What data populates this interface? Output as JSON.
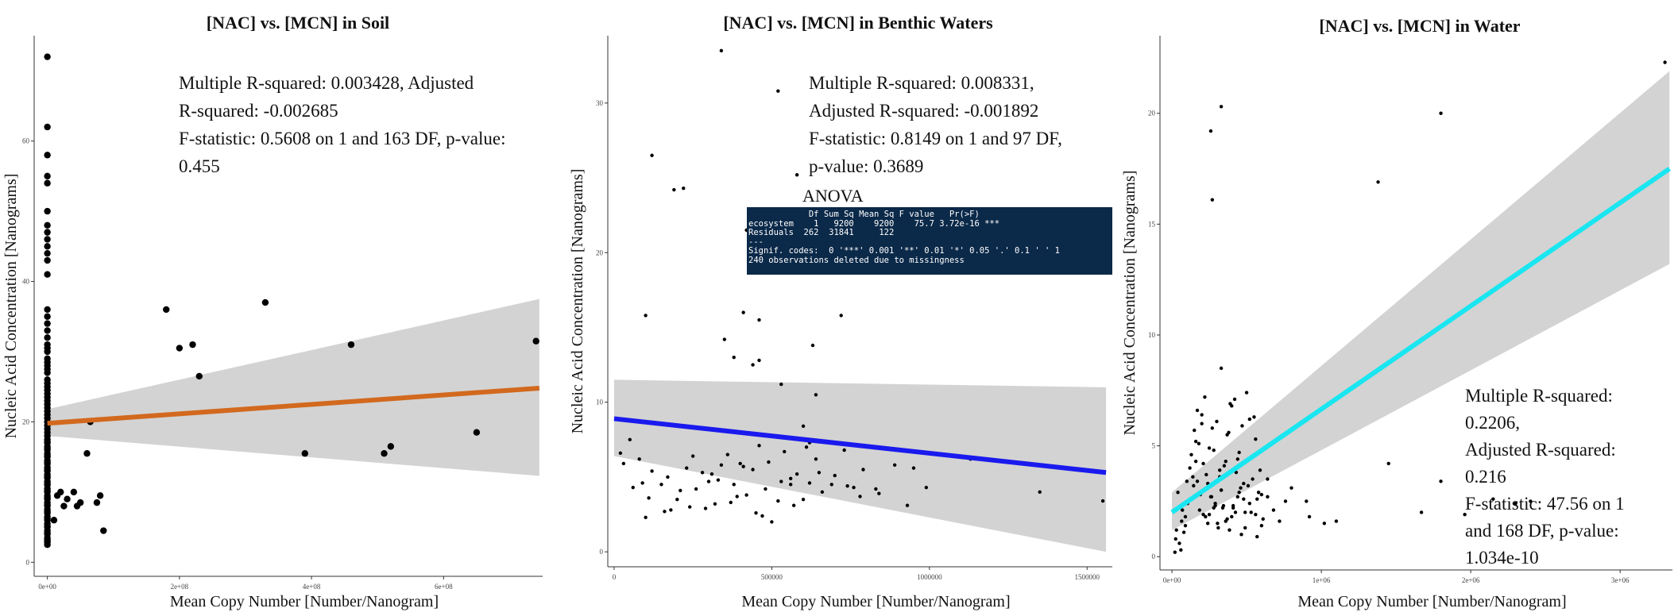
{
  "chart_data": [
    {
      "type": "scatter",
      "title": "[NAC] vs. [MCN] in Soil",
      "xlabel": "Mean Copy Number [Number/Nanogram]",
      "ylabel": "Nucleic Acid Concentration [Nanograms]",
      "xlim": [
        -20000000,
        750000000
      ],
      "ylim": [
        -2,
        75
      ],
      "x_ticks": [
        0,
        200000000,
        400000000,
        600000000
      ],
      "x_tick_labels": [
        "0e+00",
        "2e+08",
        "4e+08",
        "6e+08"
      ],
      "y_ticks": [
        0,
        20,
        40,
        60
      ],
      "y_tick_labels": [
        "0",
        "20",
        "40",
        "60"
      ],
      "regression_line": {
        "color": "#d2691e",
        "x": [
          0,
          745000000
        ],
        "y": [
          19.8,
          24.8
        ]
      },
      "confidence_band": {
        "upper": [
          21.8,
          37.5
        ],
        "lower": [
          18.0,
          12.3
        ]
      },
      "annotation_lines": [
        "Multiple R-squared:  0.003428, Adjusted",
        "R-squared:  -0.002685",
        "F-statistic: 0.5608 on 1 and 163 DF,  p-value:",
        "0.455"
      ],
      "series": [
        {
          "x": [
            0,
            0,
            0,
            0,
            0,
            0,
            0,
            0,
            0,
            0,
            0,
            0,
            0,
            0,
            0,
            0,
            0,
            0,
            0,
            0,
            0,
            0,
            0,
            0,
            0,
            0,
            0,
            0,
            0,
            0,
            0,
            0,
            0,
            0,
            0,
            0,
            0,
            0,
            0,
            0,
            0,
            0,
            0,
            0,
            0,
            0,
            0,
            0,
            0,
            0,
            0,
            0,
            0,
            0,
            0,
            0,
            0,
            0,
            0,
            0,
            0,
            0,
            0,
            0,
            0,
            0,
            0,
            0,
            0,
            0,
            0,
            0,
            0,
            0,
            0,
            0,
            0,
            0,
            0,
            0,
            0,
            0,
            0,
            0,
            0,
            0,
            0,
            0,
            0,
            0,
            10000000,
            15000000,
            20000000,
            25000000,
            30000000,
            40000000,
            45000000,
            50000000,
            60000000,
            65000000,
            75000000,
            80000000,
            85000000,
            180000000,
            200000000,
            220000000,
            230000000,
            330000000,
            390000000,
            460000000,
            510000000,
            520000000,
            650000000,
            740000000
          ],
          "y": [
            72,
            62,
            58,
            55,
            54,
            50,
            48,
            47,
            46,
            45,
            44,
            43,
            41,
            36,
            35,
            34,
            33,
            32,
            31,
            30.5,
            30,
            29,
            28.5,
            28,
            27.5,
            27,
            26,
            25.5,
            25,
            24.5,
            24,
            23.5,
            23,
            22.5,
            22,
            21.5,
            21,
            20.5,
            20,
            19.5,
            19,
            18.5,
            18,
            17.5,
            17,
            16.5,
            16,
            15.5,
            15,
            14.5,
            14,
            13.5,
            13,
            12.5,
            12,
            11.5,
            11,
            10.5,
            10,
            9.5,
            9,
            8.5,
            8,
            7.5,
            7,
            6.5,
            6,
            5.5,
            5,
            4.5,
            4,
            3.5,
            3,
            2.5,
            2.8,
            3.2,
            4.2,
            5.2,
            6.2,
            7.2,
            8.2,
            9.2,
            10.2,
            11.2,
            12.2,
            13.2,
            14.2,
            15.2,
            16.2,
            17.2,
            6,
            9.5,
            10,
            8,
            9,
            10,
            8,
            8.5,
            15.5,
            20,
            8.5,
            9.5,
            4.5,
            36,
            30.5,
            31,
            26.5,
            37,
            15.5,
            31,
            15.5,
            16.5,
            18.5,
            31.5
          ]
        }
      ]
    },
    {
      "type": "scatter",
      "title": "[NAC] vs. [MCN] in Benthic Waters",
      "xlabel": "Mean Copy Number [Number/Nanogram]",
      "ylabel": "Nucleic Acid Concentration [Nanograms]",
      "xlim": [
        -20000,
        1580000
      ],
      "ylim": [
        -1,
        34.5
      ],
      "x_ticks": [
        0,
        500000,
        1000000,
        1500000
      ],
      "x_tick_labels": [
        "0",
        "500000",
        "1000000",
        "1500000"
      ],
      "y_ticks": [
        0,
        10,
        20,
        30
      ],
      "y_tick_labels": [
        "0",
        "10",
        "20",
        "30"
      ],
      "regression_line": {
        "color": "#1a1aee",
        "x": [
          0,
          1560000
        ],
        "y": [
          8.9,
          5.3
        ]
      },
      "confidence_band": {
        "upper": [
          11.5,
          11.0
        ],
        "lower": [
          6.4,
          0.0
        ]
      },
      "annotation_lines": [
        "Multiple R-squared:  0.008331,",
        "Adjusted R-squared:  -0.001892",
        "F-statistic: 0.8149 on 1 and 97 DF,",
        "p-value: 0.3689"
      ],
      "anova": {
        "title": "ANOVA",
        "lines": [
          "            Df Sum Sq Mean Sq F value   Pr(>F)",
          "ecosystem    1   9200    9200    75.7 3.72e-16 ***",
          "Residuals  262  31841     122",
          "---",
          "Signif. codes:  0 '***' 0.001 '**' 0.01 '*' 0.05 '.' 0.1 ' ' 1",
          "240 observations deleted due to missingness"
        ]
      },
      "series": [
        {
          "x": [
            120000,
            190000,
            220000,
            340000,
            420000,
            460000,
            100000,
            350000,
            380000,
            520000,
            720000,
            580000,
            630000,
            410000,
            440000,
            460000,
            530000,
            640000,
            600000,
            620000,
            20000,
            50000,
            80000,
            100000,
            120000,
            150000,
            180000,
            200000,
            230000,
            260000,
            280000,
            300000,
            320000,
            340000,
            360000,
            380000,
            400000,
            420000,
            440000,
            460000,
            480000,
            500000,
            520000,
            540000,
            560000,
            580000,
            600000,
            620000,
            640000,
            660000,
            700000,
            740000,
            790000,
            840000,
            60000,
            110000,
            170000,
            210000,
            250000,
            290000,
            330000,
            370000,
            410000,
            450000,
            490000,
            530000,
            570000,
            610000,
            650000,
            690000,
            730000,
            780000,
            830000,
            890000,
            950000,
            990000,
            1130000,
            1350000,
            1550000,
            30000,
            90000,
            160000,
            240000,
            310000,
            390000,
            470000,
            560000,
            760000,
            930000
          ],
          "y": [
            26.5,
            24.2,
            24.3,
            33.5,
            21.5,
            15.5,
            15.8,
            14.2,
            13,
            30.8,
            15.8,
            25.2,
            13.8,
            16,
            12.5,
            12.8,
            11.2,
            10.5,
            8.4,
            7.3,
            6.6,
            7.5,
            6.2,
            2.3,
            5.4,
            4.5,
            2.8,
            3.5,
            5.6,
            4.2,
            5.3,
            4.7,
            3.2,
            5.8,
            6.5,
            4.5,
            5.9,
            3.8,
            5.5,
            7.1,
            4.2,
            2.0,
            3.4,
            6.7,
            4.9,
            5.2,
            3.5,
            4.6,
            6.2,
            4.0,
            5.1,
            4.4,
            5.5,
            3.9,
            4.3,
            3.6,
            5.0,
            4.1,
            6.4,
            2.9,
            4.8,
            3.3,
            5.7,
            2.6,
            6.0,
            4.7,
            3.1,
            7.0,
            5.3,
            4.5,
            6.8,
            3.7,
            4.2,
            5.8,
            5.6,
            4.3,
            6.2,
            4.0,
            3.4,
            5.9,
            4.6,
            2.7,
            3.0,
            5.2,
            3.7,
            2.4,
            4.5,
            4.3,
            3.1
          ]
        }
      ]
    },
    {
      "type": "scatter",
      "title": "[NAC] vs. [MCN] in Water",
      "xlabel": "Mean Copy Number [Number/Nanogram]",
      "ylabel": "Nucleic Acid Concentration [Nanograms]",
      "xlim": [
        -80000,
        3350000
      ],
      "ylim": [
        -0.6,
        23.5
      ],
      "x_ticks": [
        0,
        1000000,
        2000000,
        3000000
      ],
      "x_tick_labels": [
        "0e+00",
        "1e+06",
        "2e+06",
        "3e+06"
      ],
      "y_ticks": [
        0,
        5,
        10,
        15,
        20
      ],
      "y_tick_labels": [
        "0",
        "5",
        "10",
        "15",
        "20"
      ],
      "regression_line": {
        "color": "#19e6f0",
        "x": [
          0,
          3330000
        ],
        "y": [
          2.0,
          17.5
        ]
      },
      "confidence_band": {
        "upper": [
          2.9,
          21.9
        ],
        "lower": [
          1.2,
          13.2
        ]
      },
      "annotation_lines": [
        "Multiple R-squared:",
        "0.2206,",
        "Adjusted R-squared:",
        "0.216",
        "F-statistic: 47.56 on 1",
        "and 168 DF,  p-value:",
        "1.034e-10"
      ],
      "series": [
        {
          "x": [
            3300000,
            1800000,
            330000,
            260000,
            270000,
            1380000,
            330000,
            2400000,
            1450000,
            900000,
            1800000,
            1960000,
            1670000,
            920000,
            1020000,
            1100000,
            640000,
            2150000,
            2300000,
            20000,
            60000,
            90000,
            110000,
            140000,
            160000,
            180000,
            200000,
            220000,
            240000,
            260000,
            280000,
            300000,
            320000,
            340000,
            360000,
            380000,
            400000,
            420000,
            440000,
            460000,
            480000,
            500000,
            520000,
            540000,
            560000,
            580000,
            600000,
            30000,
            70000,
            100000,
            130000,
            150000,
            170000,
            190000,
            210000,
            230000,
            250000,
            270000,
            290000,
            310000,
            330000,
            350000,
            370000,
            390000,
            410000,
            430000,
            450000,
            470000,
            490000,
            510000,
            530000,
            550000,
            570000,
            590000,
            610000,
            40000,
            80000,
            120000,
            160000,
            200000,
            240000,
            280000,
            320000,
            360000,
            400000,
            440000,
            480000,
            520000,
            560000,
            600000,
            640000,
            680000,
            720000,
            760000,
            800000,
            50000,
            90000,
            130000,
            170000,
            210000,
            250000,
            290000,
            330000,
            370000,
            410000,
            450000,
            490000,
            530000,
            570000,
            25000,
            65000,
            105000,
            145000,
            185000,
            225000,
            265000,
            305000,
            345000,
            385000,
            425000,
            465000
          ],
          "y": [
            22.3,
            20.0,
            20.3,
            19.2,
            16.1,
            16.9,
            8.5,
            2.5,
            4.2,
            2.5,
            3.4,
            1.9,
            2.0,
            1.8,
            1.5,
            1.6,
            2.7,
            2.6,
            2.4,
            0.2,
            0.3,
            1.8,
            2.5,
            3.6,
            4.3,
            5.1,
            6.4,
            7.2,
            3.3,
            2.7,
            4.8,
            6.1,
            3.9,
            2.2,
            1.6,
            5.6,
            6.8,
            7.1,
            4.4,
            3.1,
            2.6,
            7.4,
            6.2,
            3.5,
            5.3,
            2.9,
            1.4,
            1.2,
            2.1,
            3.4,
            4.6,
            5.7,
            6.6,
            2.8,
            1.9,
            3.7,
            4.9,
            5.8,
            2.4,
            1.3,
            3.0,
            4.1,
            5.5,
            6.9,
            2.3,
            3.8,
            4.7,
            5.9,
            2.0,
            3.2,
            4.5,
            6.3,
            2.6,
            3.9,
            1.7,
            2.9,
            1.1,
            4.0,
            5.2,
            6.0,
            1.5,
            2.2,
            3.6,
            4.3,
            1.8,
            2.7,
            3.3,
            2.4,
            1.9,
            2.8,
            3.5,
            2.1,
            1.6,
            2.5,
            3.1,
            0.6,
            1.4,
            2.6,
            3.4,
            4.2,
            1.9,
            2.3,
            3.0,
            1.7,
            2.2,
            2.9,
            1.3,
            2.0,
            0.9,
            0.8,
            1.6,
            2.4,
            3.2,
            2.1,
            1.8,
            2.7,
            1.5,
            2.3,
            1.2,
            2.0,
            1.0
          ]
        }
      ]
    }
  ]
}
